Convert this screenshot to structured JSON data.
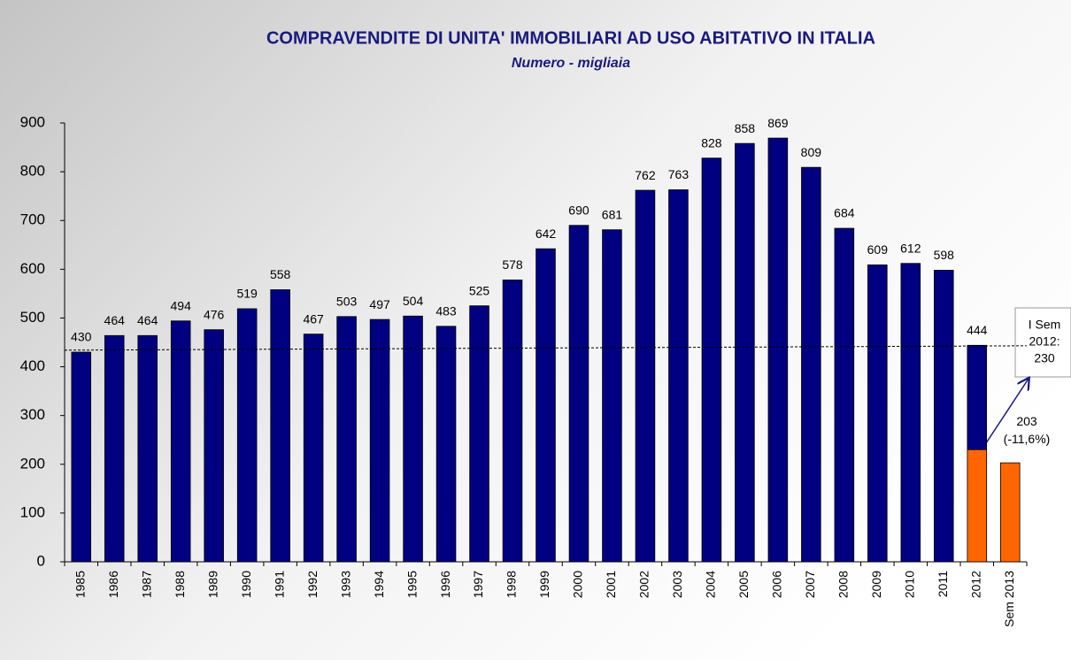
{
  "chart_data": {
    "type": "bar",
    "title": "COMPRAVENDITE DI UNITA' IMMOBILIARI AD USO ABITATIVO IN ITALIA",
    "subtitle": "Numero - migliaia",
    "categories": [
      "1985",
      "1986",
      "1987",
      "1988",
      "1989",
      "1990",
      "1991",
      "1992",
      "1993",
      "1994",
      "1995",
      "1996",
      "1997",
      "1998",
      "1999",
      "2000",
      "2001",
      "2002",
      "2003",
      "2004",
      "2005",
      "2006",
      "2007",
      "2008",
      "2009",
      "2010",
      "2011",
      "2012",
      "Sem 2013"
    ],
    "values": [
      430,
      464,
      464,
      494,
      476,
      519,
      558,
      467,
      503,
      497,
      504,
      483,
      525,
      578,
      642,
      690,
      681,
      762,
      763,
      828,
      858,
      869,
      809,
      684,
      609,
      612,
      598,
      444,
      203
    ],
    "value_labels": [
      "430",
      "464",
      "464",
      "494",
      "476",
      "519",
      "558",
      "467",
      "503",
      "497",
      "504",
      "483",
      "525",
      "578",
      "642",
      "690",
      "681",
      "762",
      "763",
      "828",
      "858",
      "869",
      "809",
      "684",
      "609",
      "612",
      "598",
      "444",
      [
        "203",
        "(-11,6%)"
      ]
    ],
    "colors": [
      "#000080",
      "#000080",
      "#000080",
      "#000080",
      "#000080",
      "#000080",
      "#000080",
      "#000080",
      "#000080",
      "#000080",
      "#000080",
      "#000080",
      "#000080",
      "#000080",
      "#000080",
      "#000080",
      "#000080",
      "#000080",
      "#000080",
      "#000080",
      "#000080",
      "#000080",
      "#000080",
      "#000080",
      "#000080",
      "#000080",
      "#000080",
      "#000080",
      "#ff6600"
    ],
    "first_half": {
      "category": "2012",
      "value": 230,
      "color": "#ff6600",
      "annotation": [
        "I Sem",
        "2012:",
        "230"
      ]
    },
    "reference_line": {
      "values": [
        434,
        443
      ]
    },
    "ylim": [
      0,
      900
    ],
    "yticks": [
      0,
      100,
      200,
      300,
      400,
      500,
      600,
      700,
      800,
      900
    ],
    "grid": false
  }
}
